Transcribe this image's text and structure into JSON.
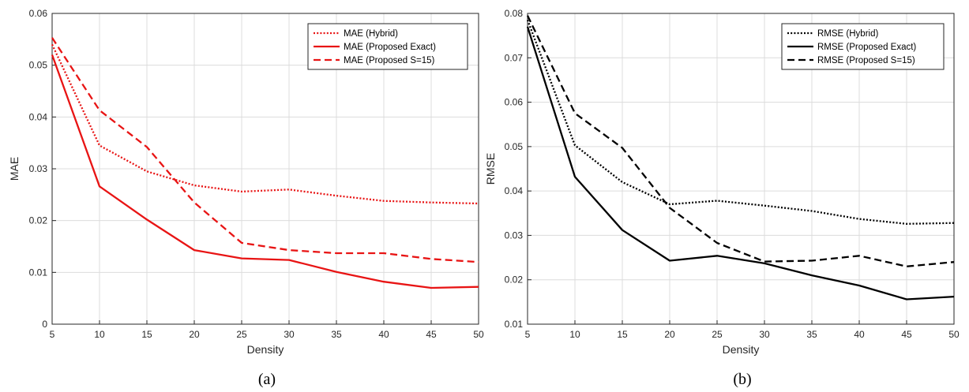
{
  "chart_data": [
    {
      "type": "line",
      "caption": "(a)",
      "xlabel": "Density",
      "ylabel": "MAE",
      "x": [
        5,
        10,
        15,
        20,
        25,
        30,
        35,
        40,
        45,
        50
      ],
      "xlim": [
        5,
        50
      ],
      "ylim": [
        0,
        0.06
      ],
      "xticks": [
        "5",
        "10",
        "15",
        "20",
        "25",
        "30",
        "35",
        "40",
        "45",
        "50"
      ],
      "yticks": [
        "0",
        "0.01",
        "0.02",
        "0.03",
        "0.04",
        "0.05",
        "0.06"
      ],
      "grid": true,
      "legend_position": "top-right",
      "series": [
        {
          "name": "MAE (Hybrid)",
          "color": "#e81414",
          "style": "dotted",
          "values": [
            0.054,
            0.0345,
            0.0295,
            0.0268,
            0.0256,
            0.026,
            0.0248,
            0.0238,
            0.0235,
            0.0233
          ]
        },
        {
          "name": "MAE (Proposed Exact)",
          "color": "#e81414",
          "style": "solid",
          "values": [
            0.052,
            0.0266,
            0.0202,
            0.0143,
            0.0127,
            0.0124,
            0.0101,
            0.0082,
            0.007,
            0.0072
          ]
        },
        {
          "name": "MAE (Proposed S=15)",
          "color": "#e81414",
          "style": "dashed",
          "values": [
            0.0553,
            0.0413,
            0.0342,
            0.0235,
            0.0157,
            0.0143,
            0.0137,
            0.0137,
            0.0126,
            0.012
          ]
        }
      ]
    },
    {
      "type": "line",
      "caption": "(b)",
      "xlabel": "Density",
      "ylabel": "RMSE",
      "x": [
        5,
        10,
        15,
        20,
        25,
        30,
        35,
        40,
        45,
        50
      ],
      "xlim": [
        5,
        50
      ],
      "ylim": [
        0.01,
        0.08
      ],
      "xticks": [
        "5",
        "10",
        "15",
        "20",
        "25",
        "30",
        "35",
        "40",
        "45",
        "50"
      ],
      "yticks": [
        "0.01",
        "0.02",
        "0.03",
        "0.04",
        "0.05",
        "0.06",
        "0.07",
        "0.08"
      ],
      "grid": true,
      "legend_position": "top-right",
      "series": [
        {
          "name": "RMSE (Hybrid)",
          "color": "#000000",
          "style": "dotted",
          "values": [
            0.0785,
            0.0503,
            0.042,
            0.037,
            0.0378,
            0.0367,
            0.0355,
            0.0337,
            0.0326,
            0.0328
          ]
        },
        {
          "name": "RMSE (Proposed Exact)",
          "color": "#000000",
          "style": "solid",
          "values": [
            0.077,
            0.0432,
            0.0312,
            0.0243,
            0.0254,
            0.0237,
            0.021,
            0.0187,
            0.0156,
            0.0162
          ]
        },
        {
          "name": "RMSE (Proposed S=15)",
          "color": "#000000",
          "style": "dashed",
          "values": [
            0.0795,
            0.0575,
            0.0497,
            0.0362,
            0.0283,
            0.0241,
            0.0243,
            0.0254,
            0.023,
            0.024
          ]
        }
      ]
    }
  ]
}
